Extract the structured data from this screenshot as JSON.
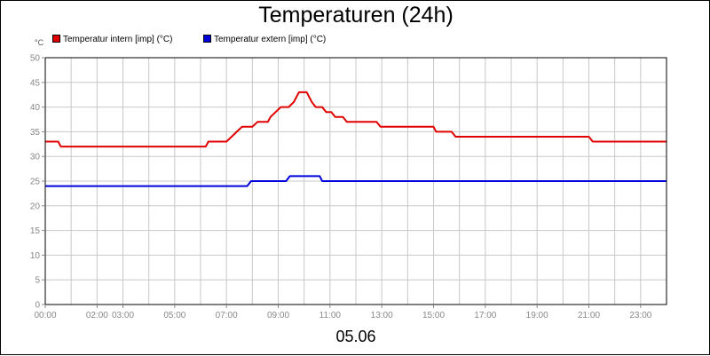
{
  "chart_data": {
    "type": "line",
    "title": "Temperaturen (24h)",
    "subtitle": "05.06",
    "y_unit": "°C",
    "xlabel": "",
    "ylabel": "°C",
    "xlim": [
      0,
      24
    ],
    "ylim": [
      0,
      50
    ],
    "grid": true,
    "legend_position": "top-left",
    "y_ticks": [
      0,
      5,
      10,
      15,
      20,
      25,
      30,
      35,
      40,
      45,
      50
    ],
    "x_ticks": [
      {
        "x": 0,
        "label": "00:00"
      },
      {
        "x": 2,
        "label": "02:00"
      },
      {
        "x": 3,
        "label": "03:00"
      },
      {
        "x": 5,
        "label": "05:00"
      },
      {
        "x": 7,
        "label": "07:00"
      },
      {
        "x": 9,
        "label": "09:00"
      },
      {
        "x": 11,
        "label": "11:00"
      },
      {
        "x": 13,
        "label": "13:00"
      },
      {
        "x": 15,
        "label": "15:00"
      },
      {
        "x": 17,
        "label": "17:00"
      },
      {
        "x": 19,
        "label": "19:00"
      },
      {
        "x": 21,
        "label": "21:00"
      },
      {
        "x": 23,
        "label": "23:00"
      }
    ],
    "series": [
      {
        "name": "Temperatur intern [imp] (°C)",
        "color": "#e00000",
        "points": [
          [
            0,
            33
          ],
          [
            0.5,
            33
          ],
          [
            0.6,
            32
          ],
          [
            6.2,
            32
          ],
          [
            6.3,
            33
          ],
          [
            7,
            33
          ],
          [
            7.2,
            34
          ],
          [
            7.4,
            35
          ],
          [
            7.6,
            36
          ],
          [
            8,
            36
          ],
          [
            8.2,
            37
          ],
          [
            8.6,
            37
          ],
          [
            8.7,
            38
          ],
          [
            8.9,
            39
          ],
          [
            9.1,
            40
          ],
          [
            9.4,
            40
          ],
          [
            9.6,
            41
          ],
          [
            9.7,
            42
          ],
          [
            9.8,
            43
          ],
          [
            10.1,
            43
          ],
          [
            10.2,
            42
          ],
          [
            10.3,
            41
          ],
          [
            10.45,
            40
          ],
          [
            10.7,
            40
          ],
          [
            10.85,
            39
          ],
          [
            11.05,
            39
          ],
          [
            11.2,
            38
          ],
          [
            11.5,
            38
          ],
          [
            11.65,
            37
          ],
          [
            12.8,
            37
          ],
          [
            12.95,
            36
          ],
          [
            15.0,
            36
          ],
          [
            15.1,
            35
          ],
          [
            15.7,
            35
          ],
          [
            15.85,
            34
          ],
          [
            21.0,
            34
          ],
          [
            21.15,
            33
          ],
          [
            24,
            33
          ]
        ]
      },
      {
        "name": "Temperatur extern [imp] (°C)",
        "color": "#0000dd",
        "points": [
          [
            0,
            24
          ],
          [
            7.8,
            24
          ],
          [
            7.95,
            25
          ],
          [
            9.3,
            25
          ],
          [
            9.45,
            26
          ],
          [
            10.6,
            26
          ],
          [
            10.7,
            25
          ],
          [
            24,
            25
          ]
        ]
      }
    ]
  }
}
